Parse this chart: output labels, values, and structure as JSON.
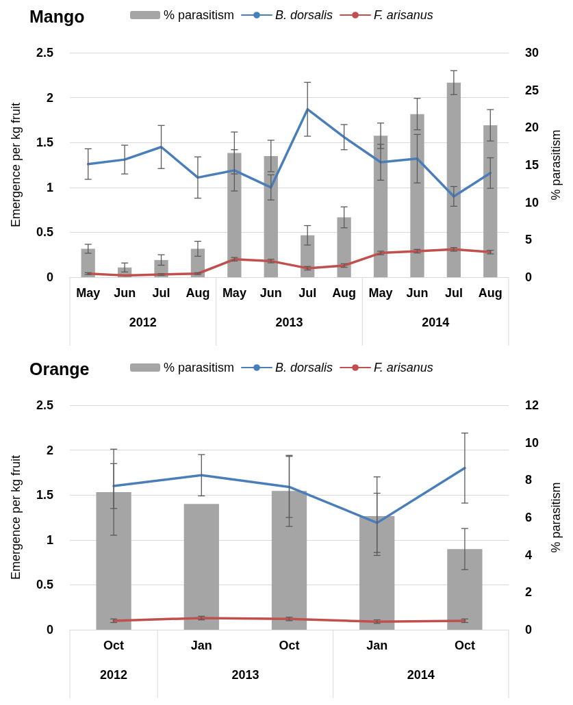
{
  "chart_data": [
    {
      "type": "bar",
      "title": "Mango",
      "ylabel": "Emergence per kg fruit",
      "y2label": "% parasitism",
      "categories": [
        "May",
        "Jun",
        "Jul",
        "Aug",
        "May",
        "Jun",
        "Jul",
        "Aug",
        "May",
        "Jun",
        "Jul",
        "Aug"
      ],
      "series": [
        {
          "name": "% parasitism",
          "axis": "y2",
          "color": "#a5a5a5",
          "values": [
            3.8,
            1.3,
            2.3,
            3.8,
            16.6,
            16.2,
            5.6,
            8.0,
            18.9,
            21.8,
            26.0,
            20.3
          ],
          "errors": [
            0.6,
            0.6,
            0.7,
            1.0,
            2.8,
            2.1,
            1.3,
            1.4,
            1.7,
            2.1,
            1.6,
            2.1
          ]
        },
        {
          "name": "B. dorsalis",
          "type": "line",
          "color": "#4a7ebb",
          "values": [
            1.26,
            1.31,
            1.45,
            1.11,
            1.19,
            1.0,
            1.87,
            1.56,
            1.28,
            1.32,
            0.9,
            1.16
          ],
          "errors": [
            0.17,
            0.16,
            0.24,
            0.23,
            0.23,
            0.14,
            0.3,
            0.14,
            0.2,
            0.27,
            0.11,
            0.17
          ]
        },
        {
          "name": "F. arisanus",
          "type": "line",
          "color": "#c0504d",
          "values": [
            0.04,
            0.02,
            0.03,
            0.04,
            0.2,
            0.18,
            0.1,
            0.13,
            0.27,
            0.29,
            0.31,
            0.28
          ],
          "errors": [
            0.01,
            null,
            0.01,
            0.01,
            0.02,
            0.02,
            0.02,
            0.02,
            0.02,
            0.02,
            0.02,
            0.02
          ]
        }
      ],
      "ylim": [
        0,
        2.5
      ],
      "yticks": [
        0,
        0.5,
        1,
        1.5,
        2,
        2.5
      ],
      "y2lim": [
        0,
        30
      ],
      "y2ticks": [
        0,
        5,
        10,
        15,
        20,
        25,
        30
      ],
      "grid": "y",
      "legend": "top",
      "marker": "none",
      "annotations": [
        "2012",
        "2013",
        "2014"
      ]
    },
    {
      "type": "bar",
      "title": "Orange",
      "ylabel": "Emergence per kg fruit",
      "y2label": "% parasitism",
      "categories": [
        "Oct",
        "Jan",
        "Oct",
        "Jan",
        "Oct"
      ],
      "series": [
        {
          "name": "% parasitism",
          "axis": "y2",
          "color": "#a5a5a5",
          "values": [
            7.35,
            6.72,
            7.42,
            6.07,
            4.31
          ],
          "errors": [
            2.3,
            null,
            1.9,
            2.1,
            1.1
          ]
        },
        {
          "name": "B. dorsalis",
          "type": "line",
          "color": "#4a7ebb",
          "values": [
            1.6,
            1.72,
            1.59,
            1.19,
            1.8
          ],
          "errors": [
            0.25,
            0.23,
            0.34,
            0.33,
            0.39
          ]
        },
        {
          "name": "F. arisanus",
          "type": "line",
          "color": "#c0504d",
          "values": [
            0.1,
            0.13,
            0.12,
            0.09,
            0.1
          ],
          "errors": [
            0.02,
            0.02,
            0.02,
            0.02,
            0.02
          ]
        }
      ],
      "ylim": [
        0,
        2.5
      ],
      "yticks": [
        0,
        0.5,
        1,
        1.5,
        2,
        2.5
      ],
      "y2lim": [
        0,
        12
      ],
      "y2ticks": [
        0,
        2,
        4,
        6,
        8,
        10,
        12
      ],
      "grid": "y",
      "legend": "top",
      "marker": "none",
      "annotations": [
        "2012",
        "2013",
        "2014"
      ]
    }
  ]
}
